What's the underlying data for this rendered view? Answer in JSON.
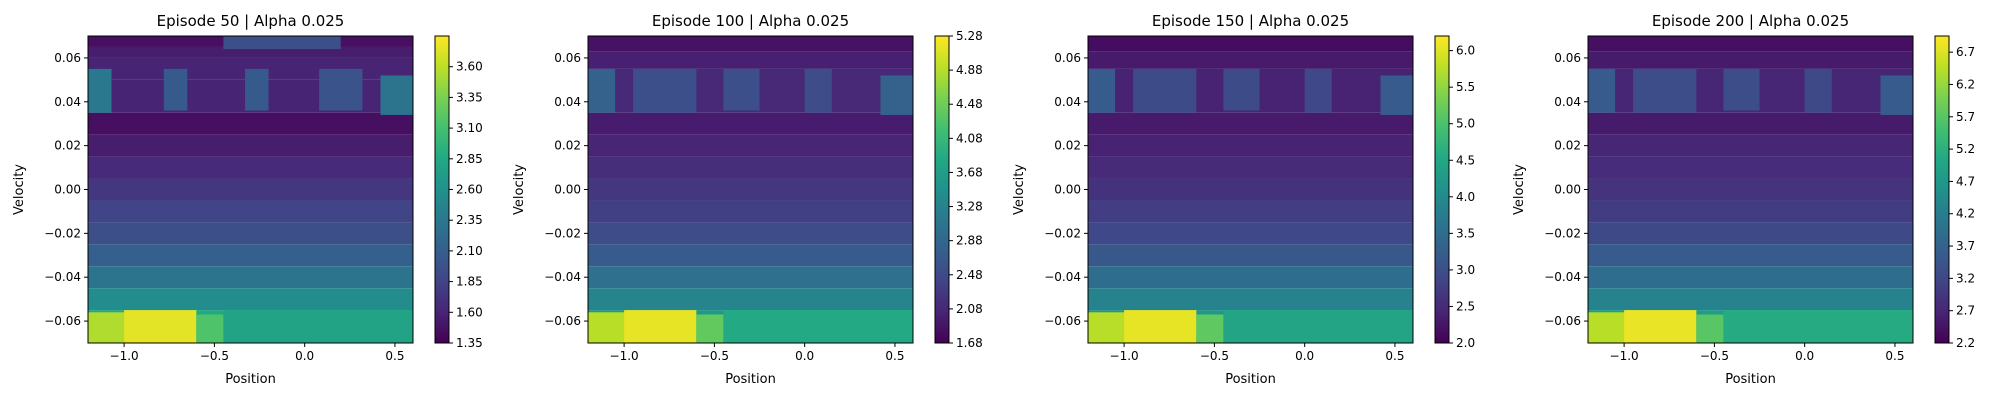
{
  "chart_data": [
    {
      "type": "heatmap",
      "title": "Episode 50 | Alpha 0.025",
      "xlabel": "Position",
      "ylabel": "Velocity",
      "xlim": [
        -1.2,
        0.6
      ],
      "ylim": [
        -0.07,
        0.07
      ],
      "x_ticks": [
        -1.0,
        -0.5,
        0.0,
        0.5
      ],
      "x_tick_labels": [
        "−1.0",
        "−0.5",
        "0.0",
        "0.5"
      ],
      "y_ticks": [
        -0.06,
        -0.04,
        -0.02,
        0.0,
        0.02,
        0.04,
        0.06
      ],
      "y_tick_labels": [
        "−0.06",
        "−0.04",
        "−0.02",
        "0.00",
        "0.02",
        "0.04",
        "0.06"
      ],
      "colormap": "viridis",
      "colorbar_range": [
        1.35,
        3.85
      ],
      "colorbar_ticks": [
        1.35,
        1.6,
        1.85,
        2.1,
        2.35,
        2.6,
        2.85,
        3.1,
        3.35,
        3.6
      ],
      "colorbar_tick_labels": [
        "1.35",
        "1.60",
        "1.85",
        "2.10",
        "2.35",
        "2.60",
        "2.85",
        "3.10",
        "3.35",
        "3.60"
      ],
      "bands": [
        {
          "v_min": 0.065,
          "v_max": 0.07,
          "value": 1.45
        },
        {
          "v_min": 0.06,
          "v_max": 0.065,
          "value": 1.55
        },
        {
          "v_min": 0.05,
          "v_max": 0.06,
          "value": 1.6
        },
        {
          "v_min": 0.035,
          "v_max": 0.05,
          "value": 1.6
        },
        {
          "v_min": 0.025,
          "v_max": 0.035,
          "value": 1.45
        },
        {
          "v_min": 0.015,
          "v_max": 0.025,
          "value": 1.55
        },
        {
          "v_min": 0.005,
          "v_max": 0.015,
          "value": 1.65
        },
        {
          "v_min": -0.005,
          "v_max": 0.005,
          "value": 1.75
        },
        {
          "v_min": -0.015,
          "v_max": -0.005,
          "value": 1.85
        },
        {
          "v_min": -0.025,
          "v_max": -0.015,
          "value": 1.95
        },
        {
          "v_min": -0.035,
          "v_max": -0.025,
          "value": 2.1
        },
        {
          "v_min": -0.045,
          "v_max": -0.035,
          "value": 2.3
        },
        {
          "v_min": -0.055,
          "v_max": -0.045,
          "value": 2.55
        },
        {
          "v_min": -0.07,
          "v_max": -0.055,
          "value": 2.85
        }
      ],
      "patches": [
        {
          "p_min": -1.2,
          "p_max": -1.07,
          "v_min": 0.035,
          "v_max": 0.055,
          "value": 2.35
        },
        {
          "p_min": -0.78,
          "p_max": -0.65,
          "v_min": 0.036,
          "v_max": 0.055,
          "value": 2.05
        },
        {
          "p_min": -0.33,
          "p_max": -0.2,
          "v_min": 0.036,
          "v_max": 0.055,
          "value": 2.05
        },
        {
          "p_min": 0.08,
          "p_max": 0.32,
          "v_min": 0.036,
          "v_max": 0.055,
          "value": 2.0
        },
        {
          "p_min": 0.42,
          "p_max": 0.6,
          "v_min": 0.034,
          "v_max": 0.052,
          "value": 2.3
        },
        {
          "p_min": -0.45,
          "p_max": 0.2,
          "v_min": 0.064,
          "v_max": 0.07,
          "value": 1.95
        },
        {
          "p_min": -1.2,
          "p_max": -0.98,
          "v_min": -0.07,
          "v_max": -0.056,
          "value": 3.55
        },
        {
          "p_min": -1.0,
          "p_max": -0.6,
          "v_min": -0.07,
          "v_max": -0.055,
          "value": 3.75
        },
        {
          "p_min": -0.6,
          "p_max": -0.45,
          "v_min": -0.07,
          "v_max": -0.057,
          "value": 3.15
        },
        {
          "p_min": -0.45,
          "p_max": 0.6,
          "v_min": -0.07,
          "v_max": -0.055,
          "value": 2.8
        }
      ]
    },
    {
      "type": "heatmap",
      "title": "Episode 100 | Alpha 0.025",
      "xlabel": "Position",
      "ylabel": "Velocity",
      "xlim": [
        -1.2,
        0.6
      ],
      "ylim": [
        -0.07,
        0.07
      ],
      "x_ticks": [
        -1.0,
        -0.5,
        0.0,
        0.5
      ],
      "x_tick_labels": [
        "−1.0",
        "−0.5",
        "0.0",
        "0.5"
      ],
      "y_ticks": [
        -0.06,
        -0.04,
        -0.02,
        0.0,
        0.02,
        0.04,
        0.06
      ],
      "y_tick_labels": [
        "−0.06",
        "−0.04",
        "−0.02",
        "0.00",
        "0.02",
        "0.04",
        "0.06"
      ],
      "colormap": "viridis",
      "colorbar_range": [
        1.68,
        5.28
      ],
      "colorbar_ticks": [
        1.68,
        2.08,
        2.48,
        2.88,
        3.28,
        3.68,
        4.08,
        4.48,
        4.88,
        5.28
      ],
      "colorbar_tick_labels": [
        "1.68",
        "2.08",
        "2.48",
        "2.88",
        "3.28",
        "3.68",
        "4.08",
        "4.48",
        "4.88",
        "5.28"
      ],
      "bands": [
        {
          "v_min": 0.063,
          "v_max": 0.07,
          "value": 1.85
        },
        {
          "v_min": 0.055,
          "v_max": 0.063,
          "value": 2.0
        },
        {
          "v_min": 0.035,
          "v_max": 0.055,
          "value": 2.1
        },
        {
          "v_min": 0.025,
          "v_max": 0.035,
          "value": 1.95
        },
        {
          "v_min": 0.015,
          "v_max": 0.025,
          "value": 2.05
        },
        {
          "v_min": 0.005,
          "v_max": 0.015,
          "value": 2.15
        },
        {
          "v_min": -0.005,
          "v_max": 0.005,
          "value": 2.25
        },
        {
          "v_min": -0.015,
          "v_max": -0.005,
          "value": 2.35
        },
        {
          "v_min": -0.025,
          "v_max": -0.015,
          "value": 2.5
        },
        {
          "v_min": -0.035,
          "v_max": -0.025,
          "value": 2.7
        },
        {
          "v_min": -0.045,
          "v_max": -0.035,
          "value": 3.0
        },
        {
          "v_min": -0.055,
          "v_max": -0.045,
          "value": 3.3
        },
        {
          "v_min": -0.07,
          "v_max": -0.055,
          "value": 3.6
        }
      ],
      "patches": [
        {
          "p_min": -1.2,
          "p_max": -1.05,
          "v_min": 0.035,
          "v_max": 0.055,
          "value": 2.8
        },
        {
          "p_min": -0.95,
          "p_max": -0.6,
          "v_min": 0.035,
          "v_max": 0.055,
          "value": 2.55
        },
        {
          "p_min": -0.45,
          "p_max": -0.25,
          "v_min": 0.036,
          "v_max": 0.055,
          "value": 2.55
        },
        {
          "p_min": 0.0,
          "p_max": 0.15,
          "v_min": 0.035,
          "v_max": 0.055,
          "value": 2.5
        },
        {
          "p_min": 0.42,
          "p_max": 0.6,
          "v_min": 0.034,
          "v_max": 0.052,
          "value": 2.8
        },
        {
          "p_min": -1.2,
          "p_max": -0.98,
          "v_min": -0.07,
          "v_max": -0.056,
          "value": 4.9
        },
        {
          "p_min": -1.0,
          "p_max": -0.6,
          "v_min": -0.07,
          "v_max": -0.055,
          "value": 5.15
        },
        {
          "p_min": -0.6,
          "p_max": -0.45,
          "v_min": -0.07,
          "v_max": -0.057,
          "value": 4.4
        },
        {
          "p_min": -0.45,
          "p_max": 0.6,
          "v_min": -0.07,
          "v_max": -0.055,
          "value": 3.85
        }
      ]
    },
    {
      "type": "heatmap",
      "title": "Episode 150 | Alpha 0.025",
      "xlabel": "Position",
      "ylabel": "Velocity",
      "xlim": [
        -1.2,
        0.6
      ],
      "ylim": [
        -0.07,
        0.07
      ],
      "x_ticks": [
        -1.0,
        -0.5,
        0.0,
        0.5
      ],
      "x_tick_labels": [
        "−1.0",
        "−0.5",
        "0.0",
        "0.5"
      ],
      "y_ticks": [
        -0.06,
        -0.04,
        -0.02,
        0.0,
        0.02,
        0.04,
        0.06
      ],
      "y_tick_labels": [
        "−0.06",
        "−0.04",
        "−0.02",
        "0.00",
        "0.02",
        "0.04",
        "0.06"
      ],
      "colormap": "viridis",
      "colorbar_range": [
        2.0,
        6.2
      ],
      "colorbar_ticks": [
        2.0,
        2.5,
        3.0,
        3.5,
        4.0,
        4.5,
        5.0,
        5.5,
        6.0
      ],
      "colorbar_tick_labels": [
        "2.0",
        "2.5",
        "3.0",
        "3.5",
        "4.0",
        "4.5",
        "5.0",
        "5.5",
        "6.0"
      ],
      "bands": [
        {
          "v_min": 0.063,
          "v_max": 0.07,
          "value": 2.15
        },
        {
          "v_min": 0.055,
          "v_max": 0.063,
          "value": 2.3
        },
        {
          "v_min": 0.035,
          "v_max": 0.055,
          "value": 2.4
        },
        {
          "v_min": 0.025,
          "v_max": 0.035,
          "value": 2.3
        },
        {
          "v_min": 0.015,
          "v_max": 0.025,
          "value": 2.4
        },
        {
          "v_min": 0.005,
          "v_max": 0.015,
          "value": 2.5
        },
        {
          "v_min": -0.005,
          "v_max": 0.005,
          "value": 2.6
        },
        {
          "v_min": -0.015,
          "v_max": -0.005,
          "value": 2.75
        },
        {
          "v_min": -0.025,
          "v_max": -0.015,
          "value": 2.9
        },
        {
          "v_min": -0.035,
          "v_max": -0.025,
          "value": 3.15
        },
        {
          "v_min": -0.045,
          "v_max": -0.035,
          "value": 3.5
        },
        {
          "v_min": -0.055,
          "v_max": -0.045,
          "value": 3.85
        },
        {
          "v_min": -0.07,
          "v_max": -0.055,
          "value": 4.2
        }
      ],
      "patches": [
        {
          "p_min": -1.2,
          "p_max": -1.05,
          "v_min": 0.035,
          "v_max": 0.055,
          "value": 3.2
        },
        {
          "p_min": -0.95,
          "p_max": -0.6,
          "v_min": 0.035,
          "v_max": 0.055,
          "value": 2.95
        },
        {
          "p_min": -0.45,
          "p_max": -0.25,
          "v_min": 0.036,
          "v_max": 0.055,
          "value": 2.95
        },
        {
          "p_min": 0.0,
          "p_max": 0.15,
          "v_min": 0.035,
          "v_max": 0.055,
          "value": 2.9
        },
        {
          "p_min": 0.42,
          "p_max": 0.6,
          "v_min": 0.034,
          "v_max": 0.052,
          "value": 3.2
        },
        {
          "p_min": -1.2,
          "p_max": -0.98,
          "v_min": -0.07,
          "v_max": -0.056,
          "value": 5.75
        },
        {
          "p_min": -1.0,
          "p_max": -0.6,
          "v_min": -0.07,
          "v_max": -0.055,
          "value": 6.05
        },
        {
          "p_min": -0.6,
          "p_max": -0.45,
          "v_min": -0.07,
          "v_max": -0.057,
          "value": 5.15
        },
        {
          "p_min": -0.45,
          "p_max": 0.6,
          "v_min": -0.07,
          "v_max": -0.055,
          "value": 4.45
        }
      ]
    },
    {
      "type": "heatmap",
      "title": "Episode 200 | Alpha 0.025",
      "xlabel": "Position",
      "ylabel": "Velocity",
      "xlim": [
        -1.2,
        0.6
      ],
      "ylim": [
        -0.07,
        0.07
      ],
      "x_ticks": [
        -1.0,
        -0.5,
        0.0,
        0.5
      ],
      "x_tick_labels": [
        "−1.0",
        "−0.5",
        "0.0",
        "0.5"
      ],
      "y_ticks": [
        -0.06,
        -0.04,
        -0.02,
        0.0,
        0.02,
        0.04,
        0.06
      ],
      "y_tick_labels": [
        "−0.06",
        "−0.04",
        "−0.02",
        "0.00",
        "0.02",
        "0.04",
        "0.06"
      ],
      "colormap": "viridis",
      "colorbar_range": [
        2.2,
        6.95
      ],
      "colorbar_ticks": [
        2.2,
        2.7,
        3.2,
        3.7,
        4.2,
        4.7,
        5.2,
        5.7,
        6.2,
        6.7
      ],
      "colorbar_tick_labels": [
        "2.2",
        "2.7",
        "3.2",
        "3.7",
        "4.2",
        "4.7",
        "5.2",
        "5.7",
        "6.2",
        "6.7"
      ],
      "bands": [
        {
          "v_min": 0.063,
          "v_max": 0.07,
          "value": 2.4
        },
        {
          "v_min": 0.055,
          "v_max": 0.063,
          "value": 2.55
        },
        {
          "v_min": 0.035,
          "v_max": 0.055,
          "value": 2.7
        },
        {
          "v_min": 0.025,
          "v_max": 0.035,
          "value": 2.55
        },
        {
          "v_min": 0.015,
          "v_max": 0.025,
          "value": 2.7
        },
        {
          "v_min": 0.005,
          "v_max": 0.015,
          "value": 2.8
        },
        {
          "v_min": -0.005,
          "v_max": 0.005,
          "value": 2.9
        },
        {
          "v_min": -0.015,
          "v_max": -0.005,
          "value": 3.05
        },
        {
          "v_min": -0.025,
          "v_max": -0.015,
          "value": 3.25
        },
        {
          "v_min": -0.035,
          "v_max": -0.025,
          "value": 3.55
        },
        {
          "v_min": -0.045,
          "v_max": -0.035,
          "value": 3.9
        },
        {
          "v_min": -0.055,
          "v_max": -0.045,
          "value": 4.3
        },
        {
          "v_min": -0.07,
          "v_max": -0.055,
          "value": 4.8
        }
      ],
      "patches": [
        {
          "p_min": -1.2,
          "p_max": -1.05,
          "v_min": 0.035,
          "v_max": 0.055,
          "value": 3.55
        },
        {
          "p_min": -0.95,
          "p_max": -0.6,
          "v_min": 0.035,
          "v_max": 0.055,
          "value": 3.3
        },
        {
          "p_min": -0.45,
          "p_max": -0.25,
          "v_min": 0.036,
          "v_max": 0.055,
          "value": 3.3
        },
        {
          "p_min": 0.0,
          "p_max": 0.15,
          "v_min": 0.035,
          "v_max": 0.055,
          "value": 3.25
        },
        {
          "p_min": 0.42,
          "p_max": 0.6,
          "v_min": 0.034,
          "v_max": 0.052,
          "value": 3.55
        },
        {
          "p_min": -1.2,
          "p_max": -0.98,
          "v_min": -0.07,
          "v_max": -0.056,
          "value": 6.45
        },
        {
          "p_min": -1.0,
          "p_max": -0.6,
          "v_min": -0.07,
          "v_max": -0.055,
          "value": 6.8
        },
        {
          "p_min": -0.6,
          "p_max": -0.45,
          "v_min": -0.07,
          "v_max": -0.057,
          "value": 5.7
        },
        {
          "p_min": -0.45,
          "p_max": 0.6,
          "v_min": -0.07,
          "v_max": -0.055,
          "value": 5.1
        }
      ]
    }
  ]
}
